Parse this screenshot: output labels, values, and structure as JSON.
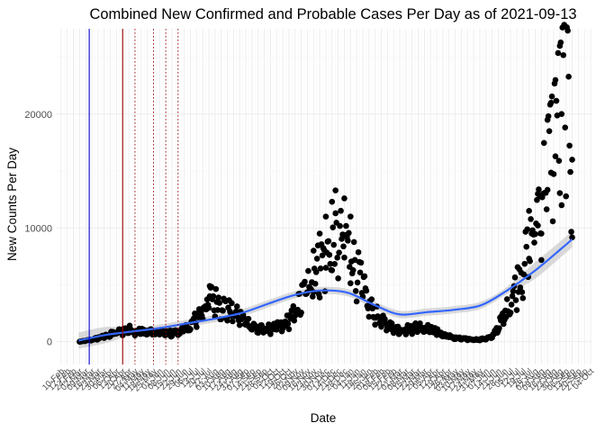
{
  "chart_data": {
    "type": "scatter",
    "title": "Combined New Confirmed and Probable Cases Per Day as of 2021-09-13",
    "xlabel": "Date",
    "ylabel": "New Counts Per Day",
    "xlim": [
      "2020-02-04",
      "2021-10-06"
    ],
    "ylim": [
      -2000,
      27500
    ],
    "yticks": [
      0,
      10000,
      20000
    ],
    "grid": true,
    "legend": "none",
    "colors": {
      "points": "#000000",
      "smooth": "#3366ff",
      "ribbon": "#bbbbbb",
      "vline_primary": "#0000cc",
      "vline_secondary": "#990000",
      "grid": "#ebebeb"
    },
    "xtick_labels": [
      "10-Feb",
      "17-Feb",
      "24-Feb",
      "02-Mar",
      "09-Mar",
      "16-Mar",
      "23-Mar",
      "30-Mar",
      "06-Apr",
      "13-Apr",
      "20-Apr",
      "27-Apr",
      "04-May",
      "11-May",
      "18-May",
      "25-May",
      "01-Jun",
      "08-Jun",
      "15-Jun",
      "22-Jun",
      "29-Jun",
      "06-Jul",
      "13-Jul",
      "20-Jul",
      "27-Jul",
      "03-Aug",
      "10-Aug",
      "17-Aug",
      "24-Aug",
      "31-Aug",
      "07-Sep",
      "14-Sep",
      "21-Sep",
      "28-Sep",
      "05-Oct",
      "12-Oct",
      "19-Oct",
      "26-Oct",
      "02-Nov",
      "09-Nov",
      "16-Nov",
      "23-Nov",
      "30-Nov",
      "07-Dec",
      "14-Dec",
      "21-Dec",
      "28-Dec",
      "04-Jan",
      "11-Jan",
      "18-Jan",
      "25-Jan",
      "01-Feb",
      "08-Feb",
      "15-Feb",
      "22-Feb",
      "01-Mar",
      "08-Mar",
      "15-Mar",
      "22-Mar",
      "29-Mar",
      "05-Apr",
      "12-Apr",
      "19-Apr",
      "26-Apr",
      "03-May",
      "10-May",
      "17-May",
      "24-May",
      "31-May",
      "07-Jun",
      "14-Jun",
      "21-Jun",
      "28-Jun",
      "05-Jul",
      "12-Jul",
      "19-Jul",
      "26-Jul",
      "02-Aug",
      "09-Aug",
      "16-Aug",
      "23-Aug",
      "30-Aug",
      "06-Sep",
      "13-Sep",
      "20-Sep",
      "27-Sep",
      "04-Oct"
    ],
    "vlines": [
      {
        "date": "2020-03-13",
        "style": "solid",
        "color": "#0000cc"
      },
      {
        "date": "2020-04-20",
        "style": "solid",
        "color": "#990000"
      },
      {
        "date": "2020-05-04",
        "style": "dotted",
        "color": "#990000"
      },
      {
        "date": "2020-05-25",
        "style": "dotted",
        "color": "#990000"
      },
      {
        "date": "2020-06-08",
        "style": "dotted",
        "color": "#990000"
      },
      {
        "date": "2020-06-22",
        "style": "dotted",
        "color": "#990000"
      }
    ],
    "anchors": [
      [
        "2020-03-02",
        0
      ],
      [
        "2020-03-16",
        200
      ],
      [
        "2020-03-30",
        500
      ],
      [
        "2020-04-13",
        900
      ],
      [
        "2020-04-27",
        1200
      ],
      [
        "2020-05-11",
        1000
      ],
      [
        "2020-05-25",
        900
      ],
      [
        "2020-06-08",
        800
      ],
      [
        "2020-06-22",
        900
      ],
      [
        "2020-07-06",
        1500
      ],
      [
        "2020-07-20",
        3200
      ],
      [
        "2020-07-30",
        4300
      ],
      [
        "2020-08-10",
        3600
      ],
      [
        "2020-08-24",
        2800
      ],
      [
        "2020-09-07",
        2000
      ],
      [
        "2020-09-21",
        1200
      ],
      [
        "2020-10-05",
        1300
      ],
      [
        "2020-10-19",
        1500
      ],
      [
        "2020-11-02",
        2800
      ],
      [
        "2020-11-16",
        5500
      ],
      [
        "2020-11-30",
        7500
      ],
      [
        "2020-12-14",
        9000
      ],
      [
        "2020-12-28",
        10000
      ],
      [
        "2021-01-11",
        7000
      ],
      [
        "2021-01-25",
        3500
      ],
      [
        "2021-02-08",
        2000
      ],
      [
        "2021-02-22",
        1300
      ],
      [
        "2021-03-08",
        1200
      ],
      [
        "2021-03-22",
        1500
      ],
      [
        "2021-04-05",
        1200
      ],
      [
        "2021-04-19",
        700
      ],
      [
        "2021-05-03",
        350
      ],
      [
        "2021-05-17",
        250
      ],
      [
        "2021-05-31",
        200
      ],
      [
        "2021-06-14",
        450
      ],
      [
        "2021-06-28",
        2500
      ],
      [
        "2021-07-12",
        5500
      ],
      [
        "2021-07-26",
        9000
      ],
      [
        "2021-08-09",
        14000
      ],
      [
        "2021-08-23",
        20000
      ],
      [
        "2021-09-06",
        25000
      ],
      [
        "2021-09-13",
        16000
      ]
    ],
    "highlights": [
      [
        "2020-07-28",
        4900
      ],
      [
        "2020-11-23",
        8000
      ],
      [
        "2020-11-30",
        9500
      ],
      [
        "2020-12-07",
        11000
      ],
      [
        "2020-12-14",
        12300
      ],
      [
        "2020-12-18",
        13300
      ],
      [
        "2020-12-28",
        12600
      ],
      [
        "2021-01-04",
        11000
      ],
      [
        "2021-07-26",
        11500
      ],
      [
        "2021-08-05",
        13000
      ],
      [
        "2021-08-09",
        9500
      ],
      [
        "2021-08-16",
        19500
      ],
      [
        "2021-08-20",
        21000
      ],
      [
        "2021-08-25",
        23000
      ],
      [
        "2021-08-30",
        26000
      ],
      [
        "2021-09-01",
        12000
      ],
      [
        "2021-09-13",
        16000
      ]
    ],
    "smooth": [
      [
        "2020-03-01",
        100
      ],
      [
        "2020-04-01",
        600
      ],
      [
        "2020-05-01",
        900
      ],
      [
        "2020-06-01",
        1200
      ],
      [
        "2020-07-01",
        1600
      ],
      [
        "2020-08-01",
        2000
      ],
      [
        "2020-09-01",
        2500
      ],
      [
        "2020-10-01",
        3300
      ],
      [
        "2020-11-01",
        4100
      ],
      [
        "2020-12-01",
        4500
      ],
      [
        "2021-01-01",
        4300
      ],
      [
        "2021-02-01",
        3200
      ],
      [
        "2021-03-01",
        2400
      ],
      [
        "2021-04-01",
        2600
      ],
      [
        "2021-05-01",
        2800
      ],
      [
        "2021-06-01",
        3200
      ],
      [
        "2021-07-01",
        4500
      ],
      [
        "2021-08-01",
        6200
      ],
      [
        "2021-09-01",
        8200
      ],
      [
        "2021-09-13",
        9000
      ]
    ]
  }
}
